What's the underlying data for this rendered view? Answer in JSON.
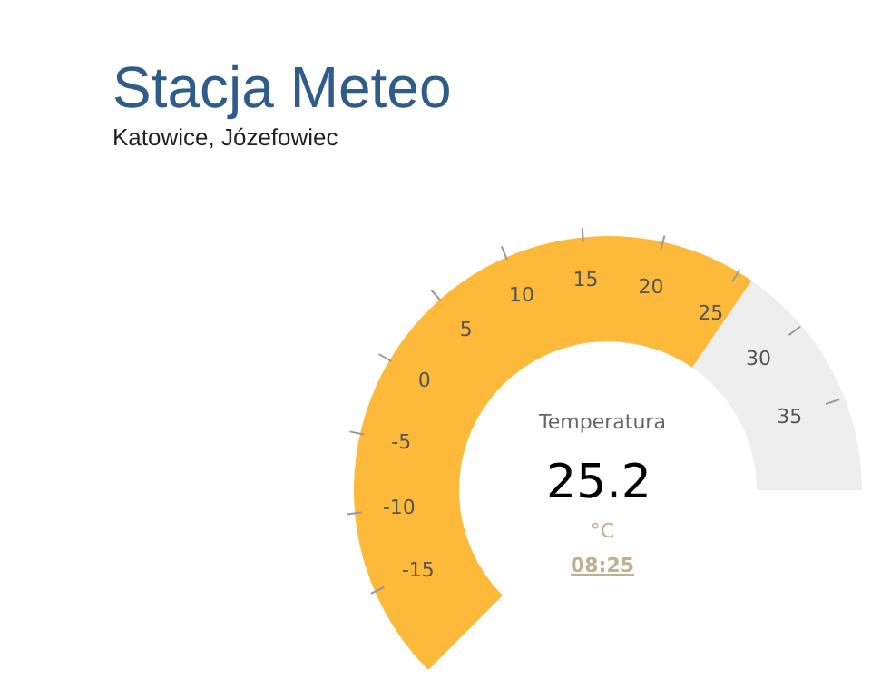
{
  "chart_data": {
    "type": "other",
    "title": "Stacja Meteo",
    "subtitle": "Katowice, Józefowiec",
    "ylabel": "Temperatura",
    "annotations": [
      "-15",
      "-10",
      "-5",
      "0",
      "5",
      "10",
      "15",
      "20",
      "25",
      "30",
      "35",
      "°C",
      "08:25"
    ],
    "values": [
      25.2
    ],
    "data_labels": true,
    "color": "#fdb93a"
  }
}
